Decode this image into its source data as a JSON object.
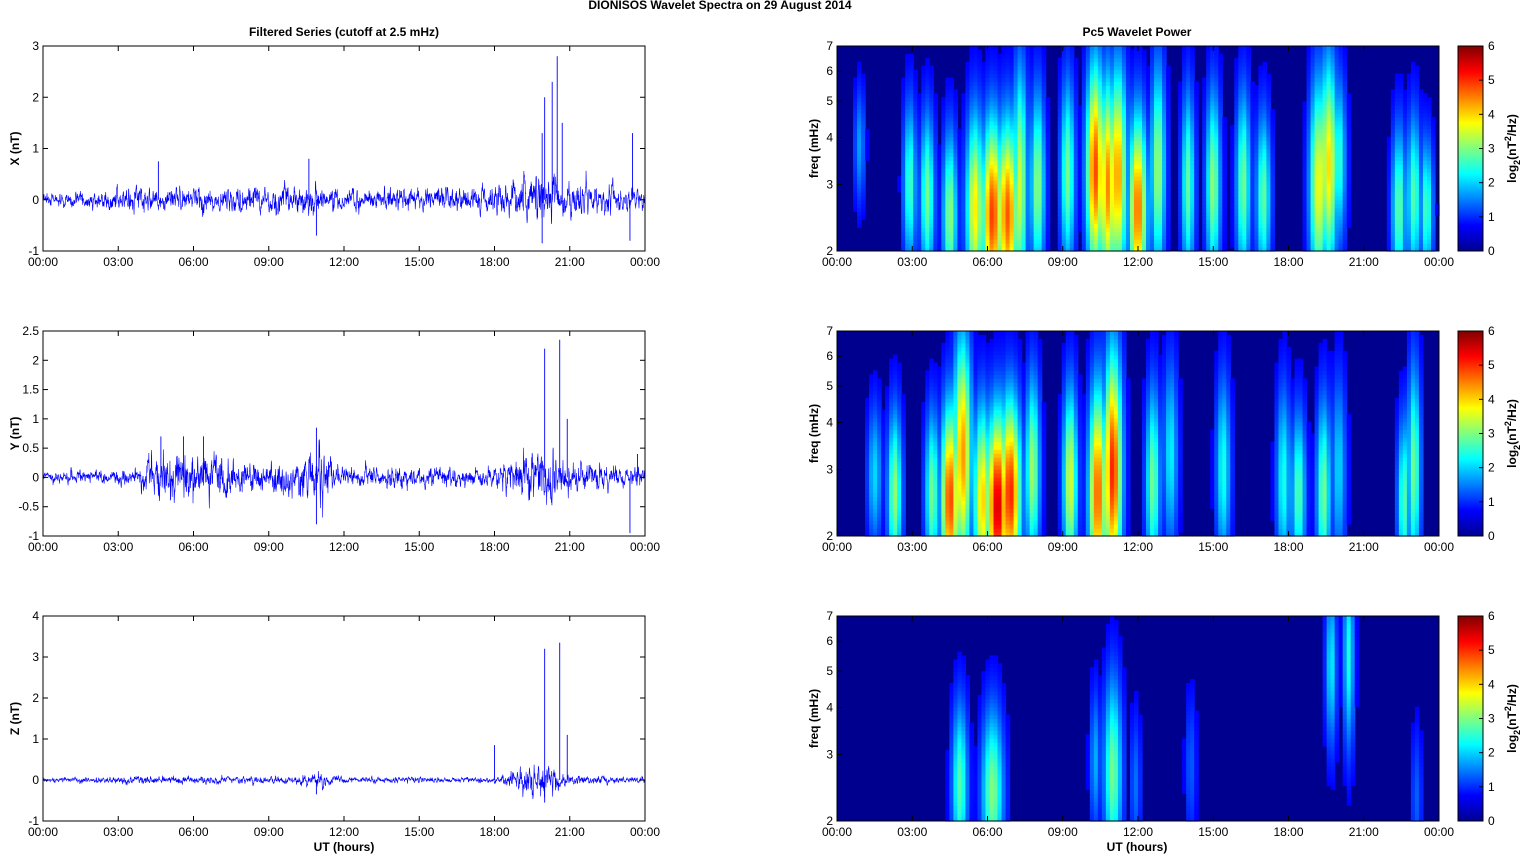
{
  "figure": {
    "title": "DIONISOS Wavelet Spectra on 29 August    2014",
    "left_title": "Filtered Series (cutoff at 2.5 mHz)",
    "right_title": "Pc5 Wavelet Power",
    "xlabel": "UT (hours)",
    "colors": {
      "trace": "#0000ff",
      "axes": "#000000",
      "spectrum_bg": "#00008f"
    }
  },
  "chart_data": [
    {
      "type": "line",
      "panel": "x-series",
      "ylabel": "X (nT)",
      "x_ticks": [
        "00:00",
        "03:00",
        "06:00",
        "09:00",
        "12:00",
        "15:00",
        "18:00",
        "21:00",
        "00:00"
      ],
      "xlim": [
        0,
        24
      ],
      "ylim": [
        -1,
        3
      ],
      "y_ticks": [
        "-1",
        "0",
        "1",
        "2",
        "3"
      ],
      "series": [
        {
          "noise_envelope": [
            [
              0,
              0.15
            ],
            [
              4.5,
              0.3
            ],
            [
              7,
              0.3
            ],
            [
              10.5,
              0.35
            ],
            [
              12,
              0.25
            ],
            [
              18,
              0.3
            ],
            [
              19.8,
              0.6
            ],
            [
              21,
              0.4
            ],
            [
              24,
              0.3
            ]
          ],
          "spikes": [
            [
              4.6,
              0.75
            ],
            [
              10.6,
              0.8
            ],
            [
              10.9,
              -0.7
            ],
            [
              19.9,
              1.3
            ],
            [
              20,
              2.0
            ],
            [
              20.3,
              2.3
            ],
            [
              20.5,
              2.8
            ],
            [
              20.7,
              1.5
            ],
            [
              23.5,
              1.3
            ],
            [
              23.4,
              -0.8
            ],
            [
              19.9,
              -0.85
            ]
          ]
        }
      ]
    },
    {
      "type": "line",
      "panel": "y-series",
      "ylabel": "Y (nT)",
      "x_ticks": [
        "00:00",
        "03:00",
        "06:00",
        "09:00",
        "12:00",
        "15:00",
        "18:00",
        "21:00",
        "00:00"
      ],
      "xlim": [
        0,
        24
      ],
      "ylim": [
        -1,
        2.5
      ],
      "y_ticks": [
        "-1",
        "-0.5",
        "0",
        "0.5",
        "1",
        "1.5",
        "2",
        "2.5"
      ],
      "series": [
        {
          "noise_envelope": [
            [
              0,
              0.1
            ],
            [
              3.5,
              0.15
            ],
            [
              4.5,
              0.5
            ],
            [
              6.5,
              0.5
            ],
            [
              7.5,
              0.3
            ],
            [
              10,
              0.3
            ],
            [
              11,
              0.6
            ],
            [
              12,
              0.2
            ],
            [
              18,
              0.2
            ],
            [
              19.8,
              0.6
            ],
            [
              21,
              0.3
            ],
            [
              24,
              0.2
            ]
          ],
          "spikes": [
            [
              4.7,
              0.7
            ],
            [
              5.6,
              0.7
            ],
            [
              6.4,
              0.7
            ],
            [
              10.9,
              0.85
            ],
            [
              10.9,
              -0.8
            ],
            [
              20,
              2.2
            ],
            [
              20.6,
              2.35
            ],
            [
              20.9,
              1.0
            ],
            [
              23.4,
              -0.95
            ],
            [
              23.7,
              0.4
            ]
          ]
        }
      ]
    },
    {
      "type": "line",
      "panel": "z-series",
      "ylabel": "Z (nT)",
      "x_ticks": [
        "00:00",
        "03:00",
        "06:00",
        "09:00",
        "12:00",
        "15:00",
        "18:00",
        "21:00",
        "00:00"
      ],
      "xlim": [
        0,
        24
      ],
      "ylim": [
        -1,
        4
      ],
      "y_ticks": [
        "-1",
        "0",
        "1",
        "2",
        "3",
        "4"
      ],
      "series": [
        {
          "noise_envelope": [
            [
              0,
              0.05
            ],
            [
              4,
              0.12
            ],
            [
              7,
              0.12
            ],
            [
              10,
              0.1
            ],
            [
              11,
              0.25
            ],
            [
              12,
              0.08
            ],
            [
              18,
              0.08
            ],
            [
              19.8,
              0.5
            ],
            [
              21,
              0.15
            ],
            [
              24,
              0.08
            ]
          ],
          "spikes": [
            [
              18,
              0.85
            ],
            [
              20,
              3.2
            ],
            [
              20.6,
              3.35
            ],
            [
              20.9,
              1.1
            ],
            [
              20,
              -0.55
            ],
            [
              10.9,
              -0.35
            ]
          ]
        }
      ]
    },
    {
      "type": "heatmap",
      "panel": "x-wavelet",
      "ylabel": "freq (mHz)",
      "yscale": "log",
      "ylim": [
        2,
        7
      ],
      "y_ticks": [
        "2",
        "3",
        "4",
        "5",
        "6",
        "7"
      ],
      "xlim": [
        0,
        24
      ],
      "x_ticks": [
        "00:00",
        "03:00",
        "06:00",
        "09:00",
        "12:00",
        "15:00",
        "18:00",
        "21:00",
        "00:00"
      ],
      "colorbar": {
        "label": "log2(nT2/Hz)",
        "ticks": [
          "0",
          "1",
          "2",
          "3",
          "4",
          "5",
          "6"
        ],
        "range": [
          0,
          6
        ]
      },
      "blobs": [
        [
          0.9,
          3.8,
          1.2,
          0.15,
          0.25
        ],
        [
          2.9,
          3.0,
          2.3,
          0.18,
          0.35
        ],
        [
          3.6,
          2.8,
          2.6,
          0.2,
          0.35
        ],
        [
          4.5,
          2.5,
          2.8,
          0.2,
          0.35
        ],
        [
          5.5,
          2.6,
          3.6,
          0.25,
          0.4
        ],
        [
          6.2,
          2.5,
          4.8,
          0.3,
          0.4
        ],
        [
          6.8,
          2.5,
          4.6,
          0.3,
          0.4
        ],
        [
          7.3,
          3.0,
          3.2,
          0.2,
          0.5
        ],
        [
          8.0,
          3.0,
          2.8,
          0.2,
          0.4
        ],
        [
          9.2,
          3.2,
          2.6,
          0.2,
          0.4
        ],
        [
          10.3,
          3.3,
          4.7,
          0.25,
          0.45
        ],
        [
          10.8,
          3.0,
          4.3,
          0.25,
          0.45
        ],
        [
          11.2,
          3.2,
          4.2,
          0.25,
          0.45
        ],
        [
          12.0,
          2.6,
          4.5,
          0.25,
          0.4
        ],
        [
          12.8,
          3.3,
          2.9,
          0.2,
          0.45
        ],
        [
          14.0,
          3.0,
          2.5,
          0.18,
          0.4
        ],
        [
          15.0,
          3.0,
          2.8,
          0.2,
          0.4
        ],
        [
          16.2,
          3.0,
          2.6,
          0.2,
          0.4
        ],
        [
          17.0,
          2.8,
          2.5,
          0.2,
          0.35
        ],
        [
          19.2,
          3.0,
          3.5,
          0.25,
          0.45
        ],
        [
          19.6,
          3.4,
          3.7,
          0.25,
          0.45
        ],
        [
          20.0,
          3.5,
          2.2,
          0.2,
          0.35
        ],
        [
          22.4,
          2.6,
          2.5,
          0.2,
          0.35
        ],
        [
          23.0,
          2.8,
          2.4,
          0.2,
          0.35
        ],
        [
          23.5,
          2.6,
          2.3,
          0.18,
          0.3
        ]
      ]
    },
    {
      "type": "heatmap",
      "panel": "y-wavelet",
      "ylabel": "freq (mHz)",
      "yscale": "log",
      "ylim": [
        2,
        7
      ],
      "y_ticks": [
        "2",
        "3",
        "4",
        "5",
        "6",
        "7"
      ],
      "xlim": [
        0,
        24
      ],
      "x_ticks": [
        "00:00",
        "03:00",
        "06:00",
        "09:00",
        "12:00",
        "15:00",
        "18:00",
        "21:00",
        "00:00"
      ],
      "colorbar": {
        "label": "log2(nT2/Hz)",
        "ticks": [
          "0",
          "1",
          "2",
          "3",
          "4",
          "5",
          "6"
        ],
        "range": [
          0,
          6
        ]
      },
      "blobs": [
        [
          1.5,
          2.9,
          1.6,
          0.2,
          0.3
        ],
        [
          2.3,
          2.6,
          2.8,
          0.2,
          0.35
        ],
        [
          3.8,
          2.6,
          2.6,
          0.2,
          0.35
        ],
        [
          4.5,
          2.5,
          4.8,
          0.25,
          0.4
        ],
        [
          5.0,
          3.3,
          4.2,
          0.25,
          0.5
        ],
        [
          5.8,
          2.5,
          3.8,
          0.25,
          0.4
        ],
        [
          6.4,
          2.4,
          5.5,
          0.3,
          0.4
        ],
        [
          6.9,
          2.6,
          5.0,
          0.3,
          0.4
        ],
        [
          7.8,
          3.0,
          2.9,
          0.2,
          0.4
        ],
        [
          9.3,
          2.8,
          3.3,
          0.2,
          0.4
        ],
        [
          10.4,
          2.6,
          4.6,
          0.25,
          0.45
        ],
        [
          11.0,
          3.0,
          5.0,
          0.25,
          0.5
        ],
        [
          12.6,
          2.8,
          2.6,
          0.2,
          0.4
        ],
        [
          13.3,
          3.3,
          1.8,
          0.2,
          0.4
        ],
        [
          15.4,
          3.0,
          2.0,
          0.2,
          0.4
        ],
        [
          17.8,
          2.8,
          2.0,
          0.2,
          0.4
        ],
        [
          18.4,
          2.6,
          2.4,
          0.2,
          0.35
        ],
        [
          19.4,
          2.6,
          2.6,
          0.2,
          0.4
        ],
        [
          20.0,
          3.0,
          1.6,
          0.2,
          0.4
        ],
        [
          22.6,
          2.5,
          2.4,
          0.18,
          0.35
        ],
        [
          23.0,
          3.0,
          2.6,
          0.18,
          0.45
        ]
      ]
    },
    {
      "type": "heatmap",
      "panel": "z-wavelet",
      "ylabel": "freq (mHz)",
      "yscale": "log",
      "ylim": [
        2,
        7
      ],
      "y_ticks": [
        "2",
        "3",
        "4",
        "5",
        "6",
        "7"
      ],
      "xlim": [
        0,
        24
      ],
      "x_ticks": [
        "00:00",
        "03:00",
        "06:00",
        "09:00",
        "12:00",
        "15:00",
        "18:00",
        "21:00",
        "00:00"
      ],
      "colorbar": {
        "label": "log2(nT2/Hz)",
        "ticks": [
          "0",
          "1",
          "2",
          "3",
          "4",
          "5",
          "6"
        ],
        "range": [
          0,
          6
        ]
      },
      "blobs": [
        [
          4.9,
          2.5,
          2.4,
          0.22,
          0.35
        ],
        [
          6.2,
          2.4,
          2.7,
          0.3,
          0.35
        ],
        [
          10.3,
          2.9,
          1.3,
          0.15,
          0.3
        ],
        [
          11.0,
          2.7,
          2.6,
          0.25,
          0.4
        ],
        [
          11.9,
          2.5,
          0.9,
          0.15,
          0.3
        ],
        [
          14.1,
          2.8,
          0.8,
          0.15,
          0.3
        ],
        [
          19.7,
          5.2,
          1.8,
          0.15,
          0.35
        ],
        [
          20.4,
          5.5,
          2.0,
          0.15,
          0.4
        ],
        [
          23.1,
          2.3,
          0.8,
          0.15,
          0.3
        ]
      ]
    }
  ]
}
